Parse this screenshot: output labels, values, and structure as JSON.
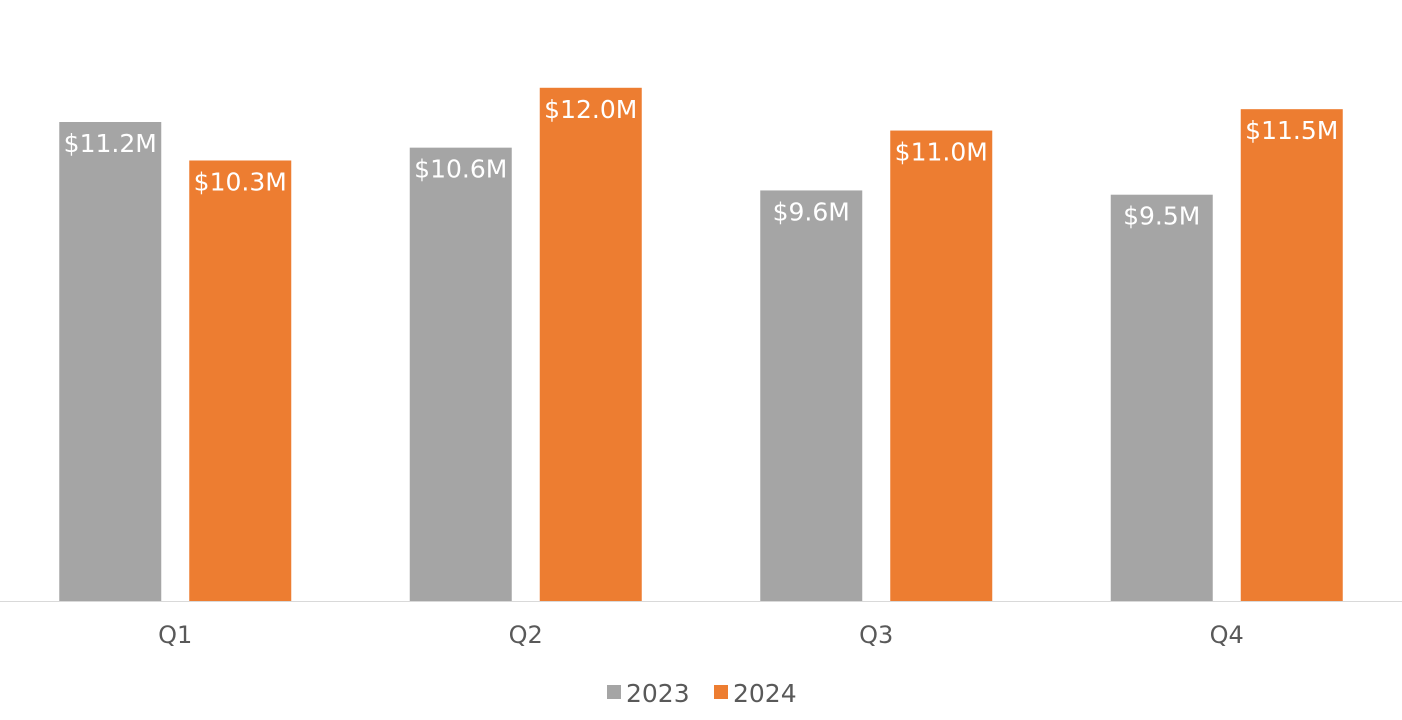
{
  "chart_data": {
    "type": "bar",
    "categories": [
      "Q1",
      "Q2",
      "Q3",
      "Q4"
    ],
    "series": [
      {
        "name": "2023",
        "values": [
          11.2,
          10.6,
          9.6,
          9.5
        ],
        "labels": [
          "$11.2M",
          "$10.6M",
          "$9.6M",
          "$9.5M"
        ],
        "color": "#A5A5A5"
      },
      {
        "name": "2024",
        "values": [
          10.3,
          12.0,
          11.0,
          11.5
        ],
        "labels": [
          "$10.3M",
          "$12.0M",
          "$11.0M",
          "$11.5M"
        ],
        "color": "#ED7D31"
      }
    ],
    "title": "",
    "xlabel": "",
    "ylabel": "",
    "ylim": [
      0,
      13
    ],
    "grid": false,
    "legend": "bottom",
    "axis_color": "#D9D9D9",
    "text_color": "#595959",
    "data_label_color": "#FFFFFF"
  }
}
